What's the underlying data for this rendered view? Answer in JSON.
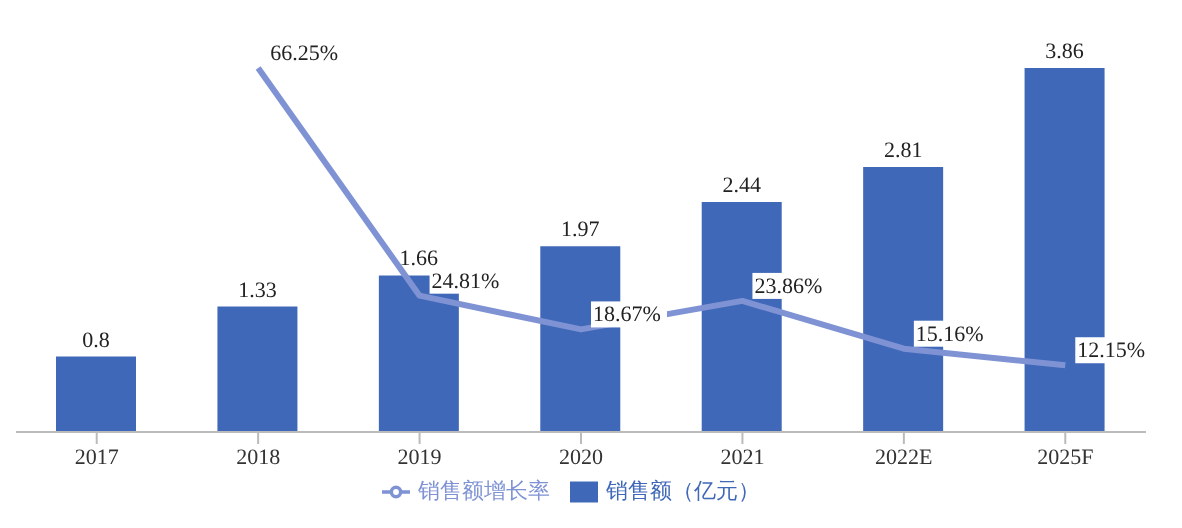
{
  "chart_data": {
    "type": "bar",
    "categories": [
      "2017",
      "2018",
      "2019",
      "2020",
      "2021",
      "2022E",
      "2025F"
    ],
    "series": [
      {
        "name": "销售额（亿元）",
        "color": "#4068b8",
        "values": [
          0.8,
          1.33,
          1.66,
          1.97,
          2.44,
          2.81,
          3.86
        ]
      },
      {
        "name": "销售额增长率",
        "type": "line",
        "axis": "y2",
        "color": "#7f93d4",
        "values": [
          null,
          66.25,
          24.81,
          18.67,
          23.86,
          15.16,
          12.15
        ],
        "value_labels": [
          null,
          "66.25%",
          "24.81%",
          "18.67%",
          "23.86%",
          "15.16%",
          "12.15%"
        ]
      }
    ],
    "data_labels": true,
    "legend": "bottom",
    "marker": "none"
  }
}
